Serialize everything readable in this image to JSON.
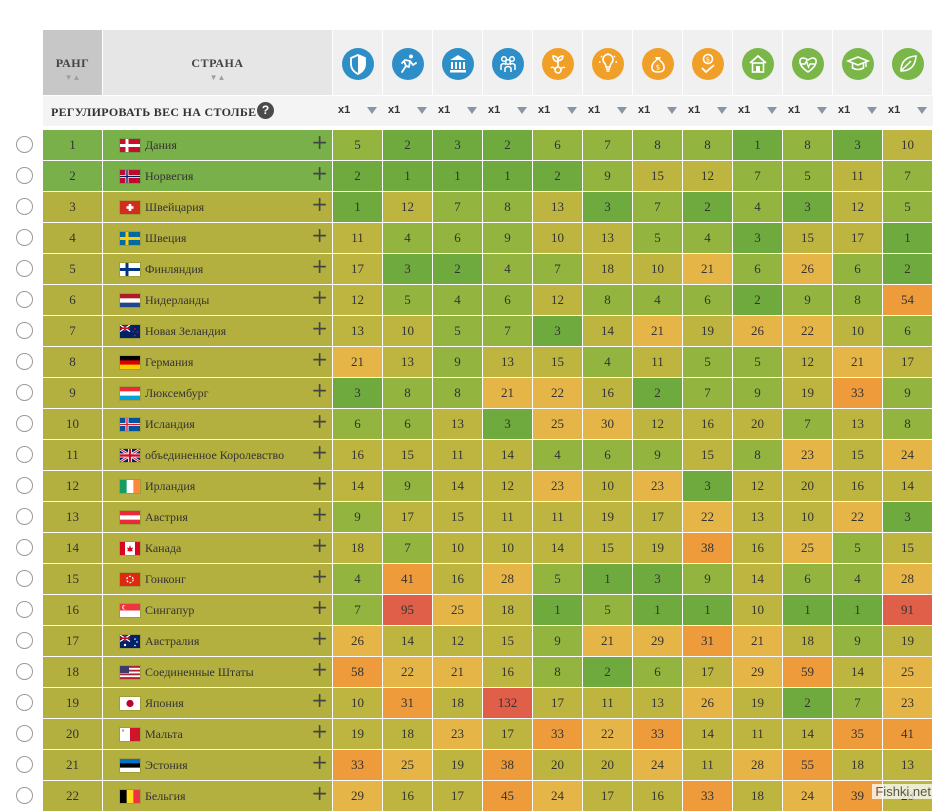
{
  "header": {
    "rank_label": "РАНГ",
    "country_label": "СТРАНА",
    "sort_glyph": "▼▲"
  },
  "weight_row": {
    "label": "РЕГУЛИРОВАТЬ ВЕС НА СТОЛБЕ",
    "help": "?",
    "weights": [
      "x1",
      "x1",
      "x1",
      "x1",
      "x1",
      "x1",
      "x1",
      "x1",
      "x1",
      "x1",
      "x1",
      "x1"
    ]
  },
  "columns": [
    {
      "icon": "shield-icon",
      "color": "#2e8fc8"
    },
    {
      "icon": "runner-icon",
      "color": "#2e8fc8"
    },
    {
      "icon": "government-building-icon",
      "color": "#2e8fc8"
    },
    {
      "icon": "people-icon",
      "color": "#2e8fc8"
    },
    {
      "icon": "sprout-coin-icon",
      "color": "#f0a028"
    },
    {
      "icon": "lightbulb-icon",
      "color": "#f0a028"
    },
    {
      "icon": "money-bag-icon",
      "color": "#f0a028"
    },
    {
      "icon": "coin-check-icon",
      "color": "#f0a028"
    },
    {
      "icon": "house-icon",
      "color": "#7ab648"
    },
    {
      "icon": "heart-pulse-icon",
      "color": "#7ab648"
    },
    {
      "icon": "graduation-cap-icon",
      "color": "#7ab648"
    },
    {
      "icon": "leaf-icon",
      "color": "#7ab648"
    }
  ],
  "rows": [
    {
      "rank": "1",
      "country": "Дания",
      "flag": "dk",
      "values": [
        "5",
        "2",
        "3",
        "2",
        "6",
        "7",
        "8",
        "8",
        "1",
        "8",
        "3",
        "10"
      ]
    },
    {
      "rank": "2",
      "country": "Норвегия",
      "flag": "no",
      "values": [
        "2",
        "1",
        "1",
        "1",
        "2",
        "9",
        "15",
        "12",
        "7",
        "5",
        "11",
        "7"
      ]
    },
    {
      "rank": "3",
      "country": "Швейцария",
      "flag": "ch",
      "values": [
        "1",
        "12",
        "7",
        "8",
        "13",
        "3",
        "7",
        "2",
        "4",
        "3",
        "12",
        "5"
      ]
    },
    {
      "rank": "4",
      "country": "Швеция",
      "flag": "se",
      "values": [
        "11",
        "4",
        "6",
        "9",
        "10",
        "13",
        "5",
        "4",
        "3",
        "15",
        "17",
        "1"
      ]
    },
    {
      "rank": "5",
      "country": "Финляндия",
      "flag": "fi",
      "values": [
        "17",
        "3",
        "2",
        "4",
        "7",
        "18",
        "10",
        "21",
        "6",
        "26",
        "6",
        "2"
      ]
    },
    {
      "rank": "6",
      "country": "Нидерланды",
      "flag": "nl",
      "values": [
        "12",
        "5",
        "4",
        "6",
        "12",
        "8",
        "4",
        "6",
        "2",
        "9",
        "8",
        "54"
      ]
    },
    {
      "rank": "7",
      "country": "Новая Зеландия",
      "flag": "nz",
      "values": [
        "13",
        "10",
        "5",
        "7",
        "3",
        "14",
        "21",
        "19",
        "26",
        "22",
        "10",
        "6"
      ]
    },
    {
      "rank": "8",
      "country": "Германия",
      "flag": "de",
      "values": [
        "21",
        "13",
        "9",
        "13",
        "15",
        "4",
        "11",
        "5",
        "5",
        "12",
        "21",
        "17"
      ]
    },
    {
      "rank": "9",
      "country": "Люксембург",
      "flag": "lu",
      "values": [
        "3",
        "8",
        "8",
        "21",
        "22",
        "16",
        "2",
        "7",
        "9",
        "19",
        "33",
        "9"
      ]
    },
    {
      "rank": "10",
      "country": "Исландия",
      "flag": "is",
      "values": [
        "6",
        "6",
        "13",
        "3",
        "25",
        "30",
        "12",
        "16",
        "20",
        "7",
        "13",
        "8"
      ]
    },
    {
      "rank": "11",
      "country": "объединенное Королевство",
      "flag": "gb",
      "values": [
        "16",
        "15",
        "11",
        "14",
        "4",
        "6",
        "9",
        "15",
        "8",
        "23",
        "15",
        "24"
      ]
    },
    {
      "rank": "12",
      "country": "Ирландия",
      "flag": "ie",
      "values": [
        "14",
        "9",
        "14",
        "12",
        "23",
        "10",
        "23",
        "3",
        "12",
        "20",
        "16",
        "14"
      ]
    },
    {
      "rank": "13",
      "country": "Австрия",
      "flag": "at",
      "values": [
        "9",
        "17",
        "15",
        "11",
        "11",
        "19",
        "17",
        "22",
        "13",
        "10",
        "22",
        "3"
      ]
    },
    {
      "rank": "14",
      "country": "Канада",
      "flag": "ca",
      "values": [
        "18",
        "7",
        "10",
        "10",
        "14",
        "15",
        "19",
        "38",
        "16",
        "25",
        "5",
        "15"
      ]
    },
    {
      "rank": "15",
      "country": "Гонконг",
      "flag": "hk",
      "values": [
        "4",
        "41",
        "16",
        "28",
        "5",
        "1",
        "3",
        "9",
        "14",
        "6",
        "4",
        "28"
      ]
    },
    {
      "rank": "16",
      "country": "Сингапур",
      "flag": "sg",
      "values": [
        "7",
        "95",
        "25",
        "18",
        "1",
        "5",
        "1",
        "1",
        "10",
        "1",
        "1",
        "91"
      ]
    },
    {
      "rank": "17",
      "country": "Австралия",
      "flag": "au",
      "values": [
        "26",
        "14",
        "12",
        "15",
        "9",
        "21",
        "29",
        "31",
        "21",
        "18",
        "9",
        "19"
      ]
    },
    {
      "rank": "18",
      "country": "Соединенные Штаты",
      "flag": "us",
      "values": [
        "58",
        "22",
        "21",
        "16",
        "8",
        "2",
        "6",
        "17",
        "29",
        "59",
        "14",
        "25"
      ]
    },
    {
      "rank": "19",
      "country": "Япония",
      "flag": "jp",
      "values": [
        "10",
        "31",
        "18",
        "132",
        "17",
        "11",
        "13",
        "26",
        "19",
        "2",
        "7",
        "23"
      ]
    },
    {
      "rank": "20",
      "country": "Мальта",
      "flag": "mt",
      "values": [
        "19",
        "18",
        "23",
        "17",
        "33",
        "22",
        "33",
        "14",
        "11",
        "14",
        "35",
        "41"
      ]
    },
    {
      "rank": "21",
      "country": "Эстония",
      "flag": "ee",
      "values": [
        "33",
        "25",
        "19",
        "38",
        "20",
        "20",
        "24",
        "11",
        "28",
        "55",
        "18",
        "13"
      ]
    },
    {
      "rank": "22",
      "country": "Бельгия",
      "flag": "be",
      "values": [
        "29",
        "16",
        "17",
        "45",
        "24",
        "17",
        "16",
        "33",
        "18",
        "24",
        "39",
        "20"
      ]
    }
  ],
  "colors": {
    "top": "#6eaa3e",
    "good": "#93b43f",
    "mid": "#bdb53f",
    "warm": "#e5b548",
    "hot": "#ee9b3c",
    "worst": "#df5f48",
    "rank_green": "#79b04a",
    "rank_olive": "#b4b040"
  },
  "watermark": "Fishki.net"
}
